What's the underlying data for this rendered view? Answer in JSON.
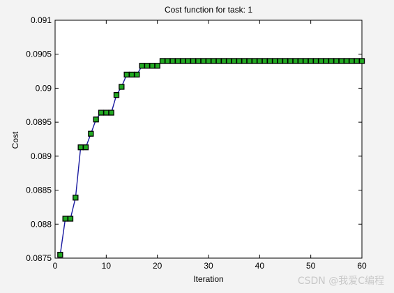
{
  "chart_data": {
    "type": "line",
    "title": "Cost function for task: 1",
    "xlabel": "Iteration",
    "ylabel": "Cost",
    "xlim": [
      0,
      60
    ],
    "ylim": [
      0.0875,
      0.091
    ],
    "xticks": [
      0,
      10,
      20,
      30,
      40,
      50,
      60
    ],
    "xtick_labels": [
      "0",
      "10",
      "20",
      "30",
      "40",
      "50",
      "60"
    ],
    "yticks": [
      0.0875,
      0.088,
      0.0885,
      0.089,
      0.0895,
      0.09,
      0.0905,
      0.091
    ],
    "ytick_labels": [
      "0.0875",
      "0.088",
      "0.0885",
      "0.089",
      "0.0895",
      "0.09",
      "0.0905",
      "0.091"
    ],
    "grid": false,
    "line_color": "#1a1aa0",
    "marker": "square",
    "marker_fill": "#22aa22",
    "marker_edge": "#000000",
    "x": [
      1,
      2,
      3,
      4,
      5,
      6,
      7,
      8,
      9,
      10,
      11,
      12,
      13,
      14,
      15,
      16,
      17,
      18,
      19,
      20,
      21,
      22,
      23,
      24,
      25,
      26,
      27,
      28,
      29,
      30,
      31,
      32,
      33,
      34,
      35,
      36,
      37,
      38,
      39,
      40,
      41,
      42,
      43,
      44,
      45,
      46,
      47,
      48,
      49,
      50,
      51,
      52,
      53,
      54,
      55,
      56,
      57,
      58,
      59,
      60
    ],
    "y": [
      0.08755,
      0.08808,
      0.08808,
      0.08839,
      0.08913,
      0.08913,
      0.08933,
      0.08954,
      0.08964,
      0.08964,
      0.08964,
      0.0899,
      0.09002,
      0.0902,
      0.0902,
      0.0902,
      0.09033,
      0.09033,
      0.09033,
      0.09033,
      0.0904,
      0.0904,
      0.0904,
      0.0904,
      0.0904,
      0.0904,
      0.0904,
      0.0904,
      0.0904,
      0.0904,
      0.0904,
      0.0904,
      0.0904,
      0.0904,
      0.0904,
      0.0904,
      0.0904,
      0.0904,
      0.0904,
      0.0904,
      0.0904,
      0.0904,
      0.0904,
      0.0904,
      0.0904,
      0.0904,
      0.0904,
      0.0904,
      0.0904,
      0.0904,
      0.0904,
      0.0904,
      0.0904,
      0.0904,
      0.0904,
      0.0904,
      0.0904,
      0.0904,
      0.0904,
      0.0904
    ]
  },
  "watermark": "CSDN @我爱C编程"
}
